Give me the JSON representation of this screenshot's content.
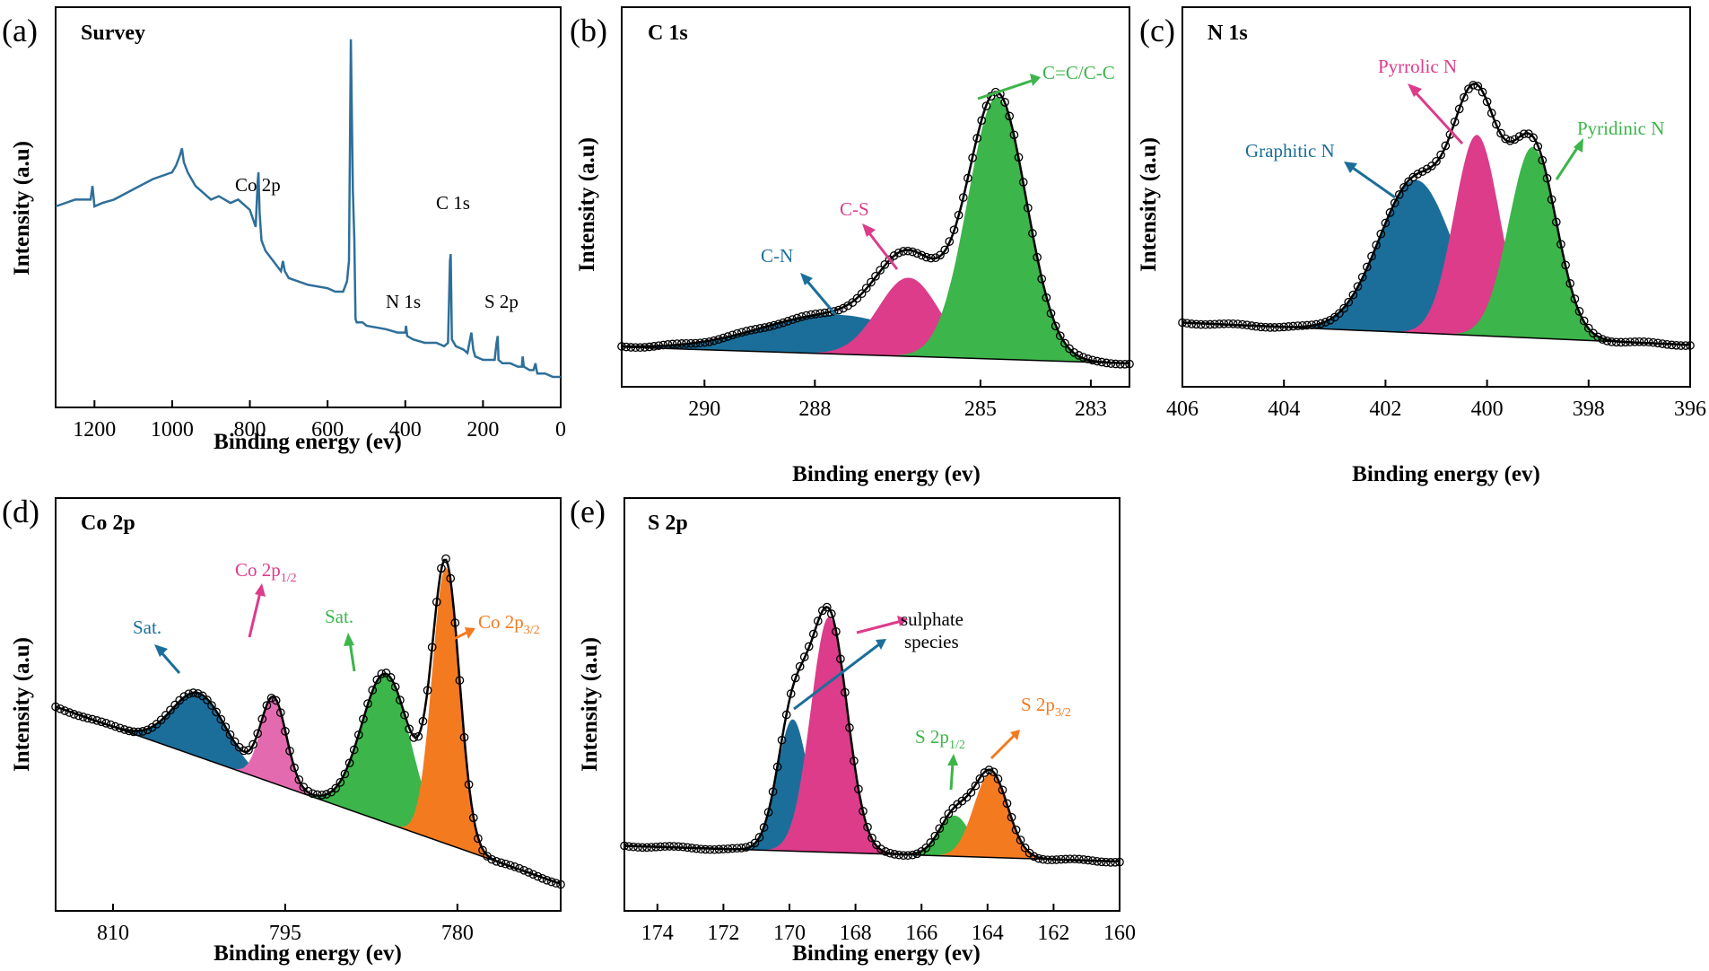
{
  "colors": {
    "blue": "#1b6e9a",
    "survey_line": "#2e6f99",
    "pink": "#dc3c8a",
    "pink_light": "#e46ab0",
    "green": "#3cb54a",
    "orange": "#f47a20",
    "black": "#000000"
  },
  "chart_data": [
    {
      "id": "a",
      "panel_label": "(a)",
      "title": "Survey",
      "type": "line",
      "xlabel": "Binding energy (ev)",
      "ylabel": "Intensity (a.u)",
      "xlim": [
        1300,
        0
      ],
      "ylim": [
        0,
        100
      ],
      "xticks": [
        1200,
        1000,
        800,
        600,
        400,
        200,
        0
      ],
      "series": [
        {
          "name": "Survey",
          "x": [
            1300,
            1250,
            1210,
            1205,
            1200,
            1180,
            1150,
            1100,
            1050,
            1000,
            990,
            980,
            975,
            970,
            960,
            940,
            900,
            880,
            850,
            830,
            800,
            785,
            780,
            778,
            775,
            770,
            760,
            740,
            720,
            715,
            710,
            700,
            650,
            600,
            580,
            560,
            550,
            545,
            540,
            535,
            531,
            528,
            525,
            520,
            510,
            500,
            450,
            420,
            400,
            398,
            395,
            380,
            350,
            320,
            300,
            290,
            285,
            283,
            280,
            270,
            250,
            240,
            230,
            225,
            220,
            200,
            180,
            170,
            165,
            162,
            160,
            150,
            130,
            110,
            100,
            98,
            95,
            80,
            70,
            65,
            62,
            60,
            40,
            20,
            0
          ],
          "y": [
            50,
            52,
            52,
            56,
            50,
            51,
            52,
            55,
            58,
            60,
            62,
            65,
            67,
            63,
            60,
            56,
            52,
            53,
            51,
            52,
            49,
            44,
            57,
            60,
            48,
            40,
            37,
            34,
            31,
            34,
            31,
            29,
            27,
            26,
            25,
            25,
            28,
            34,
            99,
            55,
            40,
            17,
            16,
            16,
            16,
            15,
            14,
            13,
            13,
            15,
            12,
            11,
            10,
            10,
            9,
            10,
            34,
            36,
            11,
            9,
            8,
            7,
            13,
            8,
            6,
            5,
            5,
            5,
            10,
            12,
            5,
            4,
            4,
            3,
            3,
            6,
            3,
            2,
            2,
            4,
            2,
            1,
            1,
            0,
            0
          ]
        }
      ],
      "annotations": [
        "Co 2p",
        "C 1s",
        "N 1s",
        "S 2p"
      ]
    },
    {
      "id": "b",
      "panel_label": "(b)",
      "title": "C 1s",
      "type": "area",
      "xlabel": "Binding energy (ev)",
      "ylabel": "Intensity (a.u)",
      "xlim": [
        291.5,
        282.3
      ],
      "ylim": [
        0,
        100
      ],
      "xticks": [
        290,
        288,
        285,
        283
      ],
      "baseline": [
        5,
        0
      ],
      "series": [
        {
          "name": "C-N",
          "center": 287.6,
          "height": 12,
          "fwhm": 3.2
        },
        {
          "name": "C-S",
          "center": 286.3,
          "height": 24,
          "fwhm": 1.3
        },
        {
          "name": "C=C/C-C",
          "center": 284.7,
          "height": 80,
          "fwhm": 1.25
        }
      ],
      "annotations": [
        "C-N",
        "C-S",
        "C=C/C-C"
      ]
    },
    {
      "id": "c",
      "panel_label": "(c)",
      "title": "N 1s",
      "type": "area",
      "xlabel": "Binding energy (ev)",
      "ylabel": "Intensity (a.u)",
      "xlim": [
        406,
        396
      ],
      "ylim": [
        0,
        100
      ],
      "xticks": [
        406,
        404,
        402,
        400,
        398,
        396
      ],
      "baseline": [
        10,
        3
      ],
      "series": [
        {
          "name": "Graphitic N",
          "center": 401.4,
          "height": 48,
          "fwhm": 1.7
        },
        {
          "name": "Pyrrolic N",
          "center": 400.2,
          "height": 63,
          "fwhm": 1.05
        },
        {
          "name": "Pyridinic N",
          "center": 399.1,
          "height": 60,
          "fwhm": 1.1
        }
      ],
      "annotations": [
        "Graphitic N",
        "Pyrrolic N",
        "Pyridinic N"
      ]
    },
    {
      "id": "d",
      "panel_label": "(d)",
      "title": "Co 2p",
      "type": "area",
      "xlabel": "Binding energy (ev)",
      "ylabel": "Intensity (a.u)",
      "xlim": [
        815,
        771
      ],
      "ylim": [
        0,
        100
      ],
      "xticks": [
        810,
        795,
        780
      ],
      "baseline": [
        50,
        0
      ],
      "series": [
        {
          "name": "Sat.",
          "center": 802.5,
          "height": 18,
          "fwhm": 5.5
        },
        {
          "name": "Co 2p1/2",
          "center": 796.0,
          "height": 24,
          "fwhm": 2.6
        },
        {
          "name": "Sat.",
          "center": 786.2,
          "height": 42,
          "fwhm": 5.0
        },
        {
          "name": "Co 2p3/2",
          "center": 781.0,
          "height": 78,
          "fwhm": 2.8
        }
      ],
      "annotations": [
        "Sat.",
        "Co 2p",
        "1/2",
        "Sat.",
        "Co 2p",
        "3/2"
      ]
    },
    {
      "id": "e",
      "panel_label": "(e)",
      "title": "S 2p",
      "type": "area",
      "xlabel": "Binding energy (ev)",
      "ylabel": "Intensity (a.u)",
      "xlim": [
        175,
        160
      ],
      "ylim": [
        0,
        100
      ],
      "xticks": [
        174,
        172,
        170,
        168,
        166,
        164,
        162,
        160
      ],
      "baseline": [
        5,
        0
      ],
      "series": [
        {
          "name": "sulphate species",
          "center": 169.9,
          "height": 42,
          "fwhm": 1.1
        },
        {
          "name": "sulphate species",
          "center": 168.8,
          "height": 75,
          "fwhm": 1.3
        },
        {
          "name": "S 2p1/2",
          "center": 165.0,
          "height": 13,
          "fwhm": 1.1
        },
        {
          "name": "S 2p3/2",
          "center": 163.9,
          "height": 27,
          "fwhm": 1.2
        }
      ],
      "annotations": [
        "sulphate",
        "species",
        "S 2p",
        "1/2",
        "S 2p",
        "3/2"
      ]
    }
  ]
}
